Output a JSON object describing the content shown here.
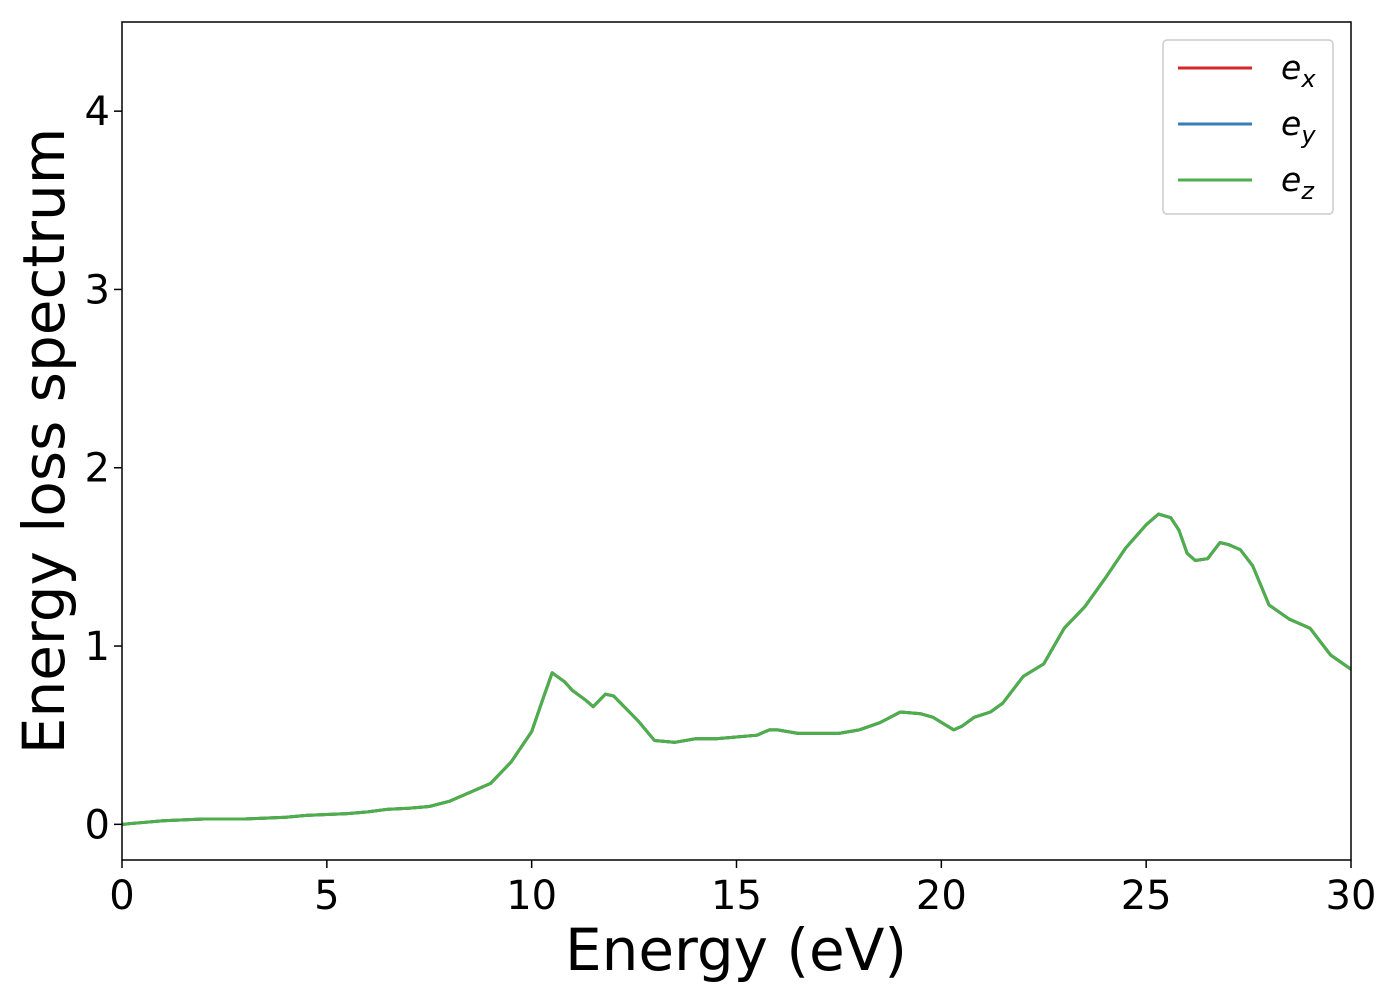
{
  "chart_data": {
    "type": "line",
    "title": "",
    "xlabel": "Energy (eV)",
    "ylabel": "Energy loss spectrum",
    "xlim": [
      0,
      30
    ],
    "ylim": [
      -0.2,
      4.5
    ],
    "xticks": [
      0,
      5,
      10,
      15,
      20,
      25,
      30
    ],
    "yticks": [
      0,
      1,
      2,
      3,
      4
    ],
    "grid": false,
    "legend_position": "top-right",
    "x": [
      0,
      0.5,
      1,
      1.5,
      2,
      2.5,
      3,
      3.5,
      4,
      4.5,
      5,
      5.5,
      6,
      6.5,
      7,
      7.5,
      8,
      8.5,
      9,
      9.5,
      10,
      10.3,
      10.5,
      10.8,
      11,
      11.3,
      11.5,
      11.8,
      12,
      12.3,
      12.6,
      13,
      13.5,
      14,
      14.5,
      15,
      15.5,
      15.8,
      16,
      16.5,
      17,
      17.5,
      18,
      18.5,
      19,
      19.5,
      19.8,
      20.3,
      20.5,
      20.8,
      21.2,
      21.5,
      22,
      22.5,
      23,
      23.5,
      24,
      24.5,
      25,
      25.3,
      25.6,
      25.8,
      26,
      26.2,
      26.5,
      26.8,
      27,
      27.3,
      27.6,
      28,
      28.5,
      29,
      29.5,
      30
    ],
    "series": [
      {
        "name": "e_x",
        "color": "#d62728",
        "values": [
          0,
          0.01,
          0.02,
          0.025,
          0.03,
          0.03,
          0.03,
          0.035,
          0.04,
          0.05,
          0.055,
          0.06,
          0.07,
          0.085,
          0.09,
          0.1,
          0.13,
          0.18,
          0.23,
          0.35,
          0.52,
          0.72,
          0.85,
          0.8,
          0.75,
          0.7,
          0.66,
          0.73,
          0.72,
          0.65,
          0.58,
          0.47,
          0.46,
          0.48,
          0.48,
          0.49,
          0.5,
          0.53,
          0.53,
          0.51,
          0.51,
          0.51,
          0.53,
          0.57,
          0.63,
          0.62,
          0.6,
          0.53,
          0.55,
          0.6,
          0.63,
          0.68,
          0.83,
          0.9,
          1.1,
          1.22,
          1.38,
          1.55,
          1.68,
          1.74,
          1.72,
          1.65,
          1.52,
          1.48,
          1.49,
          1.58,
          1.57,
          1.54,
          1.45,
          1.23,
          1.15,
          1.1,
          0.95,
          0.87
        ]
      },
      {
        "name": "e_y",
        "color": "#377eb8",
        "values": [
          0,
          0.01,
          0.02,
          0.025,
          0.03,
          0.03,
          0.03,
          0.035,
          0.04,
          0.05,
          0.055,
          0.06,
          0.07,
          0.085,
          0.09,
          0.1,
          0.13,
          0.18,
          0.23,
          0.35,
          0.52,
          0.72,
          0.85,
          0.8,
          0.75,
          0.7,
          0.66,
          0.73,
          0.72,
          0.65,
          0.58,
          0.47,
          0.46,
          0.48,
          0.48,
          0.49,
          0.5,
          0.53,
          0.53,
          0.51,
          0.51,
          0.51,
          0.53,
          0.57,
          0.63,
          0.62,
          0.6,
          0.53,
          0.55,
          0.6,
          0.63,
          0.68,
          0.83,
          0.9,
          1.1,
          1.22,
          1.38,
          1.55,
          1.68,
          1.74,
          1.72,
          1.65,
          1.52,
          1.48,
          1.49,
          1.58,
          1.57,
          1.54,
          1.45,
          1.23,
          1.15,
          1.1,
          0.95,
          0.87
        ]
      },
      {
        "name": "e_z",
        "color": "#4daf4a",
        "values": [
          0,
          0.01,
          0.02,
          0.025,
          0.03,
          0.03,
          0.03,
          0.035,
          0.04,
          0.05,
          0.055,
          0.06,
          0.07,
          0.085,
          0.09,
          0.1,
          0.13,
          0.18,
          0.23,
          0.35,
          0.52,
          0.72,
          0.85,
          0.8,
          0.75,
          0.7,
          0.66,
          0.73,
          0.72,
          0.65,
          0.58,
          0.47,
          0.46,
          0.48,
          0.48,
          0.49,
          0.5,
          0.53,
          0.53,
          0.51,
          0.51,
          0.51,
          0.53,
          0.57,
          0.63,
          0.62,
          0.6,
          0.53,
          0.55,
          0.6,
          0.63,
          0.68,
          0.83,
          0.9,
          1.1,
          1.22,
          1.38,
          1.55,
          1.68,
          1.74,
          1.72,
          1.65,
          1.52,
          1.48,
          1.49,
          1.58,
          1.57,
          1.54,
          1.45,
          1.23,
          1.15,
          1.1,
          0.95,
          0.87
        ]
      }
    ],
    "legend": [
      {
        "base": "e",
        "sub": "x"
      },
      {
        "base": "e",
        "sub": "y"
      },
      {
        "base": "e",
        "sub": "z"
      }
    ]
  }
}
